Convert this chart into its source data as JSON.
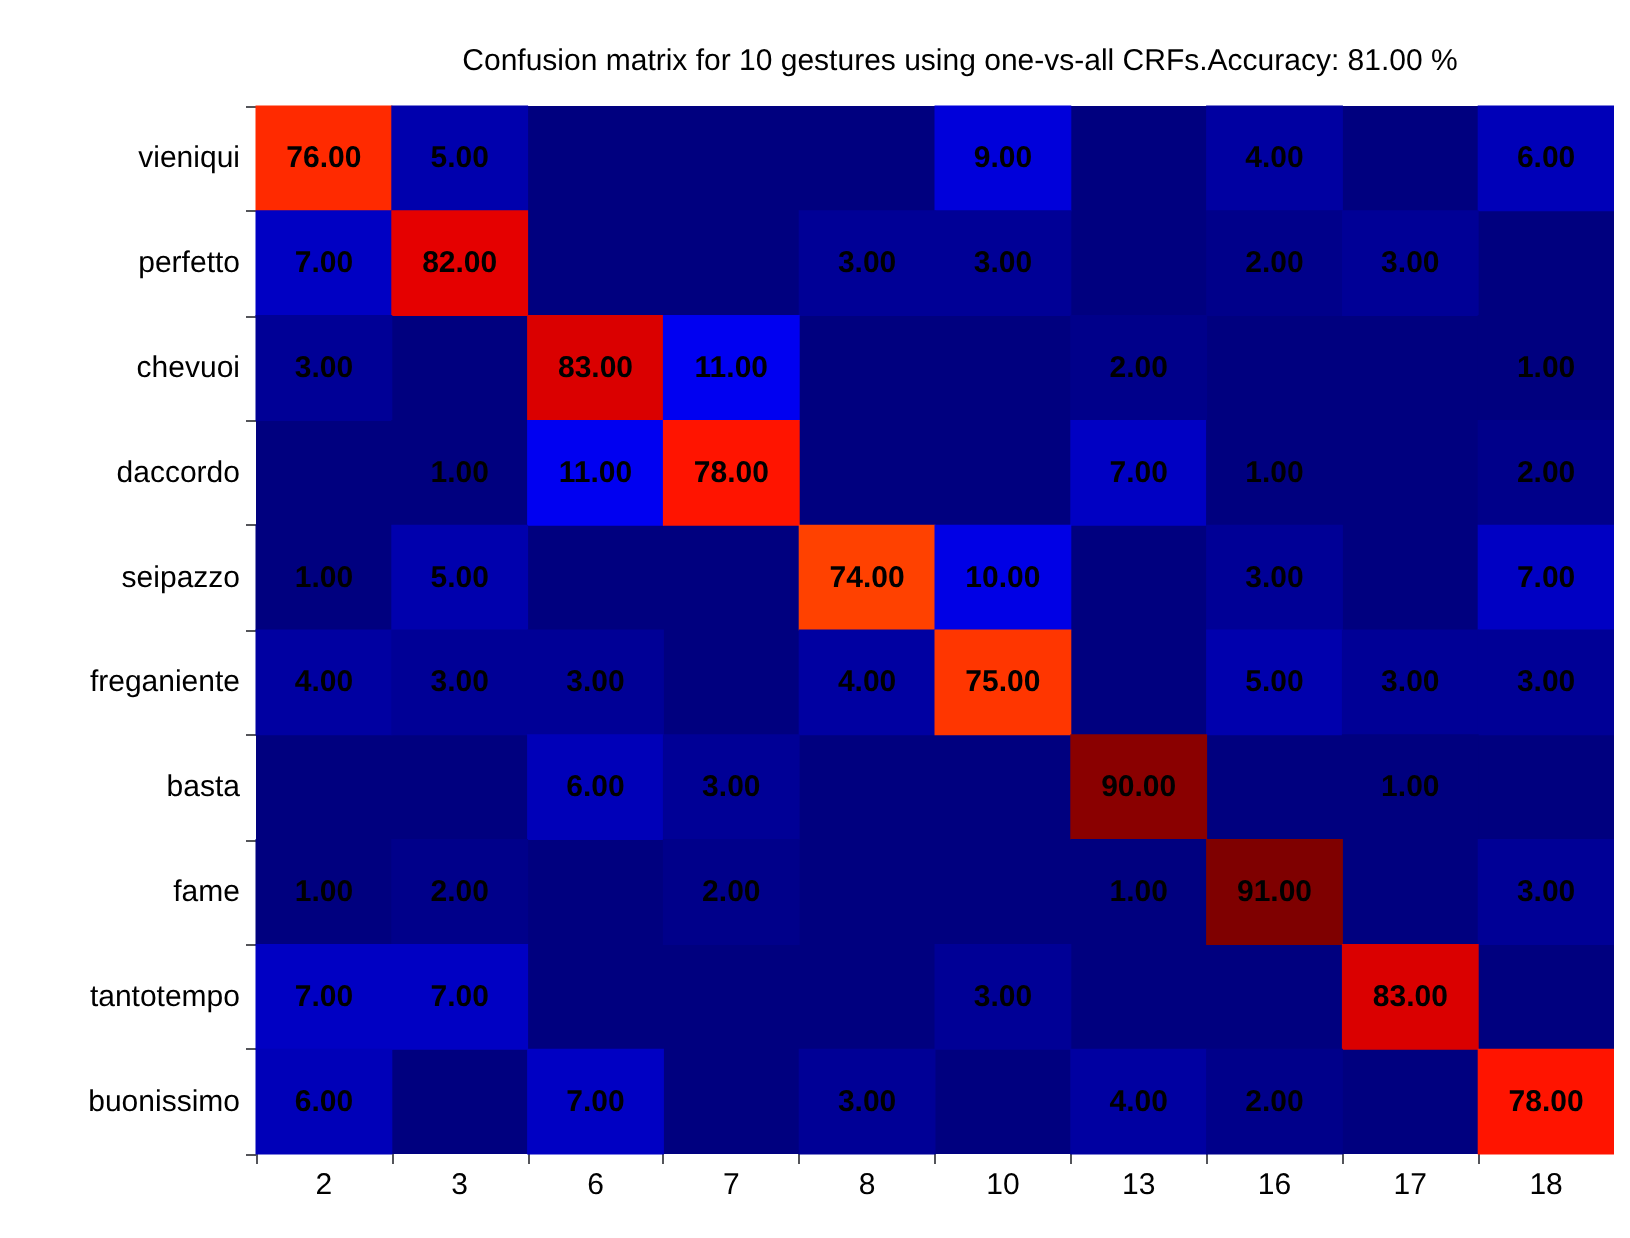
{
  "chart_data": {
    "type": "heatmap",
    "title": "Confusion matrix for 10 gestures using one-vs-all CRFs.Accuracy: 81.00 %",
    "categories": [
      "2",
      "3",
      "6",
      "7",
      "8",
      "10",
      "13",
      "16",
      "17",
      "18"
    ],
    "y_categories": [
      "vieniqui",
      "perfetto",
      "chevuoi",
      "daccordo",
      "seipazzo",
      "freganiente",
      "basta",
      "fame",
      "tantotempo",
      "buonissimo"
    ],
    "cells": [
      [
        76,
        5,
        null,
        null,
        null,
        9,
        null,
        4,
        null,
        6
      ],
      [
        7,
        82,
        null,
        null,
        3,
        3,
        null,
        2,
        3,
        null
      ],
      [
        3,
        null,
        83,
        11,
        null,
        null,
        2,
        null,
        null,
        1
      ],
      [
        null,
        1,
        11,
        78,
        null,
        null,
        7,
        1,
        null,
        2
      ],
      [
        1,
        5,
        null,
        null,
        74,
        10,
        null,
        3,
        null,
        7
      ],
      [
        4,
        3,
        3,
        null,
        4,
        75,
        null,
        5,
        3,
        3
      ],
      [
        null,
        null,
        6,
        3,
        null,
        null,
        90,
        null,
        1,
        null
      ],
      [
        1,
        2,
        null,
        2,
        null,
        null,
        1,
        91,
        null,
        3
      ],
      [
        7,
        7,
        null,
        null,
        null,
        3,
        null,
        null,
        83,
        null
      ],
      [
        6,
        null,
        7,
        null,
        3,
        null,
        4,
        2,
        null,
        78
      ]
    ],
    "cell_labels": [
      [
        "76.00",
        "5.00",
        null,
        null,
        null,
        "9.00",
        null,
        "4.00",
        null,
        "6.00"
      ],
      [
        "7.00",
        "82.00",
        null,
        null,
        "3.00",
        "3.00",
        null,
        "2.00",
        "3.00",
        null
      ],
      [
        "3.00",
        null,
        "83.00",
        "11.00",
        null,
        null,
        "2.00",
        null,
        null,
        "1.00"
      ],
      [
        null,
        "1.00",
        "11.00",
        "78.00",
        null,
        null,
        "7.00",
        "1.00",
        null,
        "2.00"
      ],
      [
        "1.00",
        "5.00",
        null,
        null,
        "74.00",
        "10.00",
        null,
        "3.00",
        null,
        "7.00"
      ],
      [
        "4.00",
        "3.00",
        "3.00",
        null,
        "4.00",
        "75.00",
        null,
        "5.00",
        "3.00",
        "3.00"
      ],
      [
        null,
        null,
        "6.00",
        "3.00",
        null,
        null,
        "90.00",
        null,
        "1.00",
        null
      ],
      [
        "1.00",
        "2.00",
        null,
        "2.00",
        null,
        null,
        "1.00",
        "91.00",
        null,
        "3.00"
      ],
      [
        "7.00",
        "7.00",
        null,
        null,
        null,
        "3.00",
        null,
        null,
        "83.00",
        null
      ],
      [
        "6.00",
        null,
        "7.00",
        null,
        "3.00",
        null,
        "4.00",
        "2.00",
        null,
        "78.00"
      ]
    ]
  }
}
